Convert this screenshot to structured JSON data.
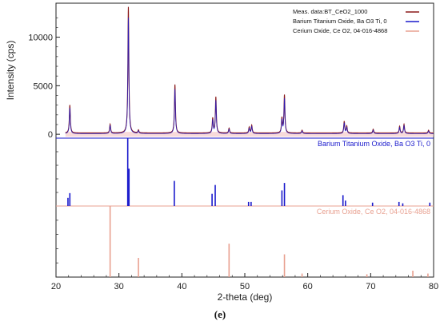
{
  "caption": "(e)",
  "chart_data": {
    "type": "line",
    "xlabel": "2-theta (deg)",
    "ylabel": "Intensity (cps)",
    "xlim": [
      20,
      80
    ],
    "ylim": [
      -400,
      13500
    ],
    "x_ticks": [
      20,
      30,
      40,
      50,
      60,
      70,
      80
    ],
    "y_ticks": [
      0,
      5000,
      10000
    ],
    "legend": {
      "placement": "top-right",
      "entries": [
        {
          "label": "Meas. data:BT_CeO2_1000",
          "color": "#8b1a1a"
        },
        {
          "label": "Barium Titanium Oxide, Ba O3 Ti, 0",
          "color": "#1a1acc"
        },
        {
          "label": "Cerium Oxide, Ce O2, 04-016-4868",
          "color": "#e8a090"
        }
      ]
    },
    "measured_peaks": [
      {
        "x": 22.2,
        "y": 2900
      },
      {
        "x": 28.6,
        "y": 900
      },
      {
        "x": 31.5,
        "y": 13000
      },
      {
        "x": 33.1,
        "y": 300
      },
      {
        "x": 38.9,
        "y": 5000
      },
      {
        "x": 44.9,
        "y": 1500
      },
      {
        "x": 45.4,
        "y": 3700
      },
      {
        "x": 47.5,
        "y": 500
      },
      {
        "x": 50.7,
        "y": 600
      },
      {
        "x": 51.1,
        "y": 800
      },
      {
        "x": 55.9,
        "y": 1500
      },
      {
        "x": 56.3,
        "y": 3900
      },
      {
        "x": 59.1,
        "y": 300
      },
      {
        "x": 65.8,
        "y": 1200
      },
      {
        "x": 66.2,
        "y": 700
      },
      {
        "x": 70.4,
        "y": 400
      },
      {
        "x": 74.6,
        "y": 700
      },
      {
        "x": 75.3,
        "y": 900
      },
      {
        "x": 79.2,
        "y": 300
      }
    ],
    "barium_titanium_oxide": {
      "label": "Barium Titanium Oxide, Ba O3 Ti, 0",
      "color": "#1a1acc",
      "peaks": [
        {
          "x": 21.9,
          "rel": 12
        },
        {
          "x": 22.2,
          "rel": 19
        },
        {
          "x": 31.4,
          "rel": 100
        },
        {
          "x": 31.6,
          "rel": 55
        },
        {
          "x": 38.8,
          "rel": 37
        },
        {
          "x": 44.8,
          "rel": 18
        },
        {
          "x": 45.3,
          "rel": 31
        },
        {
          "x": 50.6,
          "rel": 6
        },
        {
          "x": 51.0,
          "rel": 6
        },
        {
          "x": 55.9,
          "rel": 23
        },
        {
          "x": 56.3,
          "rel": 34
        },
        {
          "x": 65.6,
          "rel": 16
        },
        {
          "x": 66.0,
          "rel": 8
        },
        {
          "x": 70.3,
          "rel": 5
        },
        {
          "x": 74.5,
          "rel": 6
        },
        {
          "x": 75.1,
          "rel": 4
        },
        {
          "x": 79.4,
          "rel": 5
        }
      ]
    },
    "cerium_oxide": {
      "label": "Cerium Oxide, Ce O2, 04-016-4868",
      "color": "#e8a090",
      "peaks": [
        {
          "x": 28.6,
          "rel": 100
        },
        {
          "x": 33.1,
          "rel": 27
        },
        {
          "x": 47.5,
          "rel": 47
        },
        {
          "x": 56.3,
          "rel": 32
        },
        {
          "x": 59.1,
          "rel": 5
        },
        {
          "x": 69.4,
          "rel": 4
        },
        {
          "x": 76.7,
          "rel": 9
        },
        {
          "x": 79.1,
          "rel": 5
        }
      ]
    }
  }
}
